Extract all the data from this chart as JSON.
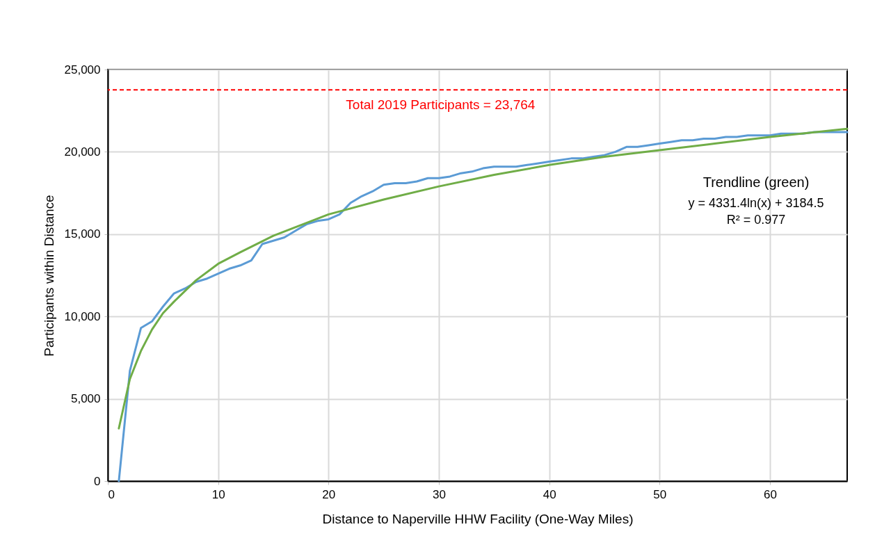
{
  "chart_data": {
    "type": "line",
    "xlabel": "Distance to Naperville HHW Facility (One-Way Miles)",
    "ylabel": "Participants within Distance",
    "xlim": [
      0,
      67
    ],
    "xticks": [
      0,
      10,
      20,
      30,
      40,
      50,
      60
    ],
    "ylim": [
      0,
      25000
    ],
    "yticks": [
      0,
      {
        "value": 5000,
        "label": "5,000"
      },
      {
        "value": 10000,
        "label": "10,000"
      },
      {
        "value": 15000,
        "label": "15,000"
      },
      {
        "value": 20000,
        "label": "20,000"
      },
      {
        "value": 25000,
        "label": "25,000"
      }
    ],
    "grid": true,
    "marker": "none",
    "line_style": "solid",
    "series": [
      {
        "color": "#5b9bd5",
        "x": [
          1,
          2,
          3,
          4,
          5,
          6,
          7,
          8,
          9,
          10,
          11,
          12,
          13,
          14,
          15,
          16,
          17,
          18,
          19,
          20,
          21,
          22,
          23,
          24,
          25,
          26,
          27,
          28,
          29,
          30,
          31,
          32,
          33,
          34,
          35,
          36,
          37,
          38,
          39,
          40,
          41,
          42,
          43,
          44,
          45,
          46,
          47,
          48,
          49,
          50,
          51,
          52,
          53,
          54,
          55,
          56,
          57,
          58,
          59,
          60,
          61,
          62,
          63,
          64,
          65,
          66,
          67
        ],
        "values": [
          0,
          6700,
          9300,
          9700,
          10600,
          11400,
          11700,
          12100,
          12300,
          12600,
          12900,
          13100,
          13400,
          14400,
          14600,
          14800,
          15200,
          15600,
          15800,
          15900,
          16200,
          16900,
          17300,
          17600,
          18000,
          18100,
          18100,
          18200,
          18400,
          18400,
          18500,
          18700,
          18800,
          19000,
          19100,
          19100,
          19100,
          19200,
          19300,
          19400,
          19500,
          19600,
          19600,
          19700,
          19800,
          20000,
          20300,
          20300,
          20400,
          20500,
          20600,
          20700,
          20700,
          20800,
          20800,
          20900,
          20900,
          21000,
          21000,
          21000,
          21100,
          21100,
          21100,
          21200,
          21200,
          21200,
          21200
        ]
      },
      {
        "type": "line",
        "color": "#70ad47",
        "x": [
          1,
          2,
          3,
          4,
          5,
          6,
          8,
          10,
          12,
          15,
          20,
          25,
          30,
          35,
          40,
          45,
          50,
          55,
          60,
          67
        ],
        "values": [
          3200,
          6200,
          7900,
          9200,
          10200,
          10900,
          12200,
          13200,
          13900,
          14900,
          16200,
          17100,
          17900,
          18600,
          19200,
          19700,
          20100,
          20500,
          20900,
          21400
        ]
      }
    ],
    "ref_lines": [
      {
        "axis": "y",
        "value": 23764,
        "label": "Total 2019 Participants = 23,764",
        "color": "#ff0000",
        "line_style": "dashed"
      }
    ],
    "annotations": [
      "Trendline  (green)",
      "y = 4331.4ln(x) + 3184.5",
      "R² = 0.977"
    ]
  }
}
